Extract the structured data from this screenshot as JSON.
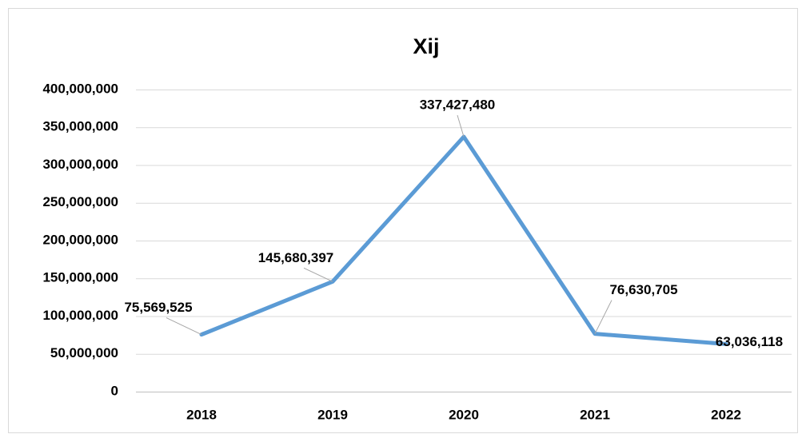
{
  "chart_data": {
    "type": "line",
    "title": "Xij",
    "categories": [
      "2018",
      "2019",
      "2020",
      "2021",
      "2022"
    ],
    "values": [
      75569525,
      145680397,
      337427480,
      76630705,
      63036118
    ],
    "value_labels": [
      "75,569,525",
      "145,680,397",
      "337,427,480",
      "76,630,705",
      "63,036,118"
    ],
    "color": "#5b9bd5",
    "ylim": [
      0,
      400000000
    ],
    "yticks": [
      0,
      {
        "value": 50000000,
        "label": "50,000,000"
      },
      {
        "value": 100000000,
        "label": "100,000,000"
      },
      {
        "value": 150000000,
        "label": "150,000,000"
      },
      {
        "value": 200000000,
        "label": "200,000,000"
      },
      {
        "value": 250000000,
        "label": "250,000,000"
      },
      {
        "value": 300000000,
        "label": "300,000,000"
      },
      {
        "value": 350000000,
        "label": "350,000,000"
      },
      {
        "value": 400000000,
        "label": "400,000,000"
      }
    ],
    "grid": true
  }
}
